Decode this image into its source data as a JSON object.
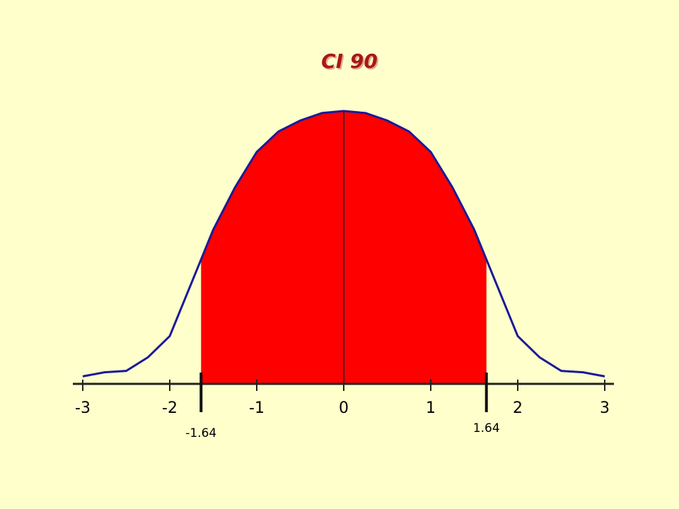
{
  "chart_data": {
    "type": "area",
    "title": "CI 90",
    "x": [
      -3,
      -2.75,
      -2.5,
      -2.25,
      -2,
      -1.75,
      -1.5,
      -1.25,
      -1,
      -0.75,
      -0.5,
      -0.25,
      0,
      0.25,
      0.5,
      0.75,
      1,
      1.25,
      1.5,
      1.75,
      2,
      2.25,
      2.5,
      2.75,
      3
    ],
    "values": [
      0.011,
      0.017,
      0.019,
      0.039,
      0.07,
      0.148,
      0.226,
      0.288,
      0.34,
      0.37,
      0.386,
      0.397,
      0.4,
      0.397,
      0.386,
      0.37,
      0.34,
      0.288,
      0.226,
      0.148,
      0.07,
      0.039,
      0.019,
      0.017,
      0.011
    ],
    "color": "#1a1a99",
    "shade_color": "#ff0000",
    "markers": [
      -1.64,
      1.64
    ],
    "xlim": [
      -3,
      3
    ],
    "xticks": [
      -3,
      -2,
      -1,
      0,
      1,
      2,
      3
    ],
    "ylim": [
      0,
      0.4
    ]
  }
}
